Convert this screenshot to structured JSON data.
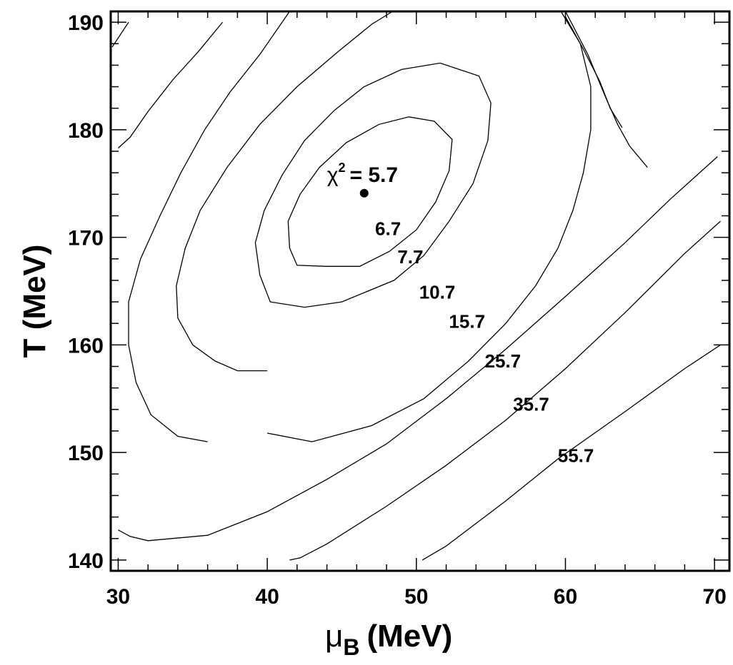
{
  "chart_data": {
    "type": "contour",
    "xlabel": "μ",
    "xlabel_subscript": "B",
    "xlabel_unit": "(MeV)",
    "ylabel": "T (MeV)",
    "xlim": [
      29.5,
      71
    ],
    "ylim": [
      139,
      191
    ],
    "xticks": [
      30,
      40,
      50,
      60,
      70
    ],
    "yticks": [
      140,
      150,
      160,
      170,
      180,
      190
    ],
    "best_fit": {
      "x": 46.5,
      "y": 174.1,
      "label_symbol": "χ",
      "label_exponent": "2",
      "label_value": "= 5.7"
    },
    "contours": [
      {
        "level": "6.7",
        "label_at": [
          48.1,
          170.2
        ],
        "points": [
          [
            44,
            167.3
          ],
          [
            42,
            167.4
          ],
          [
            41.5,
            169
          ],
          [
            41.4,
            171.5
          ],
          [
            42.2,
            174
          ],
          [
            43.5,
            176.5
          ],
          [
            45.3,
            178.8
          ],
          [
            47.5,
            180.5
          ],
          [
            49.5,
            181.2
          ],
          [
            51.2,
            180.8
          ],
          [
            52.4,
            179.1
          ],
          [
            52.2,
            176.2
          ],
          [
            51.3,
            173.3
          ],
          [
            50,
            170.7
          ],
          [
            48.2,
            168.7
          ],
          [
            46.2,
            167.3
          ],
          [
            44,
            167.3
          ]
        ]
      },
      {
        "level": "7.7",
        "label_at": [
          49.6,
          167.6
        ],
        "points": [
          [
            45,
            164
          ],
          [
            42.5,
            163.5
          ],
          [
            40.2,
            164
          ],
          [
            39.5,
            166.5
          ],
          [
            39.2,
            169.5
          ],
          [
            39.8,
            172.5
          ],
          [
            41,
            175.8
          ],
          [
            42.5,
            179
          ],
          [
            44.5,
            181.8
          ],
          [
            46.5,
            184
          ],
          [
            49,
            185.6
          ],
          [
            51.6,
            186.2
          ],
          [
            54.2,
            185
          ],
          [
            55,
            182.5
          ],
          [
            54.8,
            179
          ],
          [
            53.8,
            175
          ],
          [
            52.2,
            171.5
          ],
          [
            50.5,
            168.3
          ],
          [
            48.5,
            166
          ],
          [
            45,
            164
          ]
        ]
      },
      {
        "level": "10.7",
        "label_at": [
          51.4,
          164.3
        ],
        "points": [
          [
            40,
            157.6
          ],
          [
            38,
            157.6
          ],
          [
            36.5,
            158.5
          ],
          [
            35,
            160
          ],
          [
            34,
            162.5
          ],
          [
            33.9,
            165.5
          ],
          [
            34.5,
            169
          ],
          [
            35.5,
            172.5
          ],
          [
            37.3,
            176.5
          ],
          [
            39.5,
            180.5
          ],
          [
            42,
            184
          ],
          [
            44.7,
            187.2
          ],
          [
            47,
            189.8
          ],
          [
            48.4,
            191
          ]
        ]
      },
      {
        "level": "15.7",
        "label_at": [
          53.4,
          161.6
        ],
        "points": [
          [
            36,
            151
          ],
          [
            34,
            151.5
          ],
          [
            32.2,
            153.5
          ],
          [
            31.2,
            156.5
          ],
          [
            30.7,
            160
          ],
          [
            30.7,
            164
          ],
          [
            31.5,
            168
          ],
          [
            32.8,
            172
          ],
          [
            34.2,
            176
          ],
          [
            35.8,
            180
          ],
          [
            37.5,
            183.5
          ],
          [
            39.5,
            187
          ],
          [
            41.5,
            191
          ]
        ]
      },
      {
        "level": "25.7",
        "label_at": [
          55.8,
          157.9
        ],
        "points": [
          [
            30,
            142.8
          ],
          [
            30.8,
            142.2
          ],
          [
            32,
            141.8
          ],
          [
            36,
            142.3
          ],
          [
            40,
            144.5
          ],
          [
            44,
            147.5
          ],
          [
            48,
            150.8
          ],
          [
            52,
            155
          ],
          [
            56,
            159.6
          ],
          [
            60,
            164.5
          ],
          [
            64,
            169.5
          ],
          [
            67,
            173.5
          ],
          [
            70.2,
            177.5
          ]
        ]
      },
      {
        "level": "35.7",
        "label_at": [
          57.7,
          153.9
        ],
        "points": [
          [
            41.5,
            140
          ],
          [
            42.2,
            140.2
          ],
          [
            44,
            141.5
          ],
          [
            48,
            145
          ],
          [
            52,
            148.8
          ],
          [
            56,
            153
          ],
          [
            60,
            157.8
          ],
          [
            64,
            163
          ],
          [
            68,
            168.5
          ],
          [
            70.4,
            171.5
          ]
        ]
      },
      {
        "level": "55.7",
        "label_at": [
          60.7,
          149.1
        ],
        "points": [
          [
            50.4,
            140
          ],
          [
            52,
            141.3
          ],
          [
            56,
            145.5
          ],
          [
            59.5,
            149.4
          ],
          [
            64,
            153.8
          ],
          [
            68,
            157.8
          ],
          [
            70.4,
            160
          ]
        ]
      },
      {
        "level": "",
        "points": [
          [
            59.7,
            191
          ],
          [
            61,
            188
          ],
          [
            61.7,
            184
          ],
          [
            61.7,
            180
          ],
          [
            61.2,
            176
          ],
          [
            60.5,
            172.5
          ],
          [
            59.5,
            169
          ],
          [
            58,
            165.5
          ],
          [
            56,
            162
          ],
          [
            53.5,
            158.5
          ],
          [
            50.5,
            155
          ],
          [
            47,
            152.5
          ],
          [
            43,
            151
          ],
          [
            40,
            151.8
          ]
        ]
      },
      {
        "level": "",
        "points": [
          [
            60,
            190.5
          ],
          [
            61.2,
            187.5
          ],
          [
            62.3,
            184.5
          ],
          [
            63,
            182
          ],
          [
            63.8,
            180.2
          ]
        ]
      },
      {
        "level": "",
        "points": [
          [
            29.6,
            187.7
          ],
          [
            30.7,
            190
          ]
        ]
      },
      {
        "level": "",
        "points": [
          [
            30,
            178.3
          ],
          [
            30.8,
            179.3
          ],
          [
            32,
            181.7
          ],
          [
            33.7,
            184.7
          ],
          [
            35.4,
            187.3
          ],
          [
            37,
            190
          ]
        ]
      },
      {
        "level": "",
        "points": [
          [
            60,
            191
          ],
          [
            61.5,
            187
          ],
          [
            62.7,
            183
          ],
          [
            63.5,
            180.5
          ],
          [
            64.3,
            178.5
          ],
          [
            65.5,
            176.5
          ]
        ]
      }
    ]
  }
}
